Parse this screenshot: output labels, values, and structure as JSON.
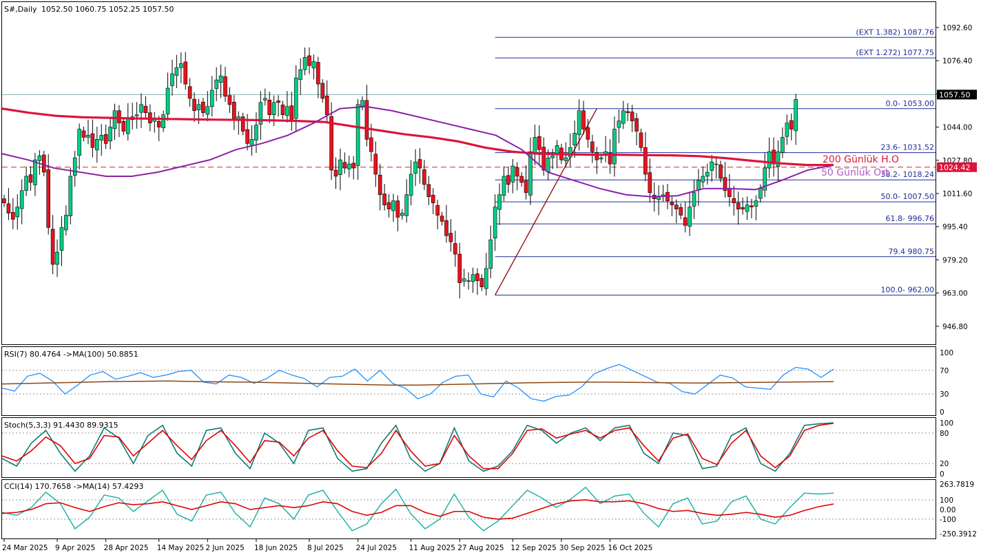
{
  "header": {
    "symbol_label": "S#,Daily",
    "ohlc": "1052.50 1060.75 1052.25 1057.50"
  },
  "colors": {
    "up_candle": "#00d084",
    "down_candle": "#e8131e",
    "ma200": "#dc143c",
    "ma50": "#8b1fa6",
    "fib": "#1e2a9b",
    "rsi": "#1e90ff",
    "rsi_ma": "#8b4513",
    "stoch_main": "#0e7a7a",
    "stoch_signal": "#e00000",
    "cci": "#20b2aa",
    "cci_ma": "#e00000"
  },
  "chart_data": [
    {
      "type": "candlestick",
      "title": "S#,Daily",
      "ohlc_readout": {
        "open": 1052.5,
        "high": 1060.75,
        "low": 1052.25,
        "close": 1057.5
      },
      "ylim": [
        938,
        1105
      ],
      "y_ticks": [
        "1092.60",
        "1076.40",
        "1060.20",
        "1044.00",
        "1027.80",
        "1011.60",
        "995.40",
        "979.20",
        "963.00",
        "946.80"
      ],
      "x_tick_labels": [
        "24 Mar 2025",
        "9 Apr 2025",
        "28 Apr 2025",
        "14 May 2025",
        "2 Jun 2025",
        "18 Jun 2025",
        "8 Jul 2025",
        "24 Jul 2025",
        "11 Aug 2025",
        "27 Aug 2025",
        "12 Sep 2025",
        "30 Sep 2025",
        "16 Oct 2025"
      ],
      "x_tick_bars": [
        0,
        12,
        23,
        35,
        46,
        57,
        69,
        80,
        92,
        103,
        115,
        126,
        137
      ],
      "close": [
        1007,
        1002,
        999,
        1005,
        1013,
        1020,
        1017,
        1028,
        1030,
        1022,
        995,
        977,
        983,
        995,
        1001,
        1020,
        1029,
        1043,
        1039,
        1040,
        1034,
        1038,
        1040,
        1036,
        1044,
        1052,
        1046,
        1042,
        1048,
        1049,
        1050,
        1055,
        1051,
        1046,
        1048,
        1044,
        1050,
        1063,
        1070,
        1073,
        1075,
        1065,
        1058,
        1052,
        1055,
        1051,
        1054,
        1062,
        1067,
        1069,
        1059,
        1055,
        1048,
        1049,
        1042,
        1036,
        1038,
        1045,
        1056,
        1058,
        1050,
        1056,
        1056,
        1050,
        1054,
        1047,
        1068,
        1072,
        1078,
        1074,
        1076,
        1065,
        1058,
        1050,
        1023,
        1020,
        1028,
        1024,
        1026,
        1024,
        1055,
        1057,
        1038,
        1032,
        1021,
        1011,
        1006,
        1004,
        1008,
        1000,
        1002,
        1011,
        1021,
        1027,
        1024,
        1016,
        1010,
        1007,
        1001,
        998,
        991,
        988,
        982,
        968,
        970,
        969,
        972,
        969,
        966,
        975,
        989,
        1005,
        1011,
        1020,
        1016,
        1025,
        1020,
        1017,
        1012,
        1032,
        1039,
        1033,
        1023,
        1029,
        1030,
        1035,
        1028,
        1029,
        1034,
        1041,
        1052,
        1043,
        1038,
        1032,
        1028,
        1029,
        1032,
        1026,
        1043,
        1047,
        1052,
        1051,
        1047,
        1042,
        1034,
        1021,
        1012,
        1009,
        1010,
        1011,
        1008,
        1006,
        1004,
        1001,
        996,
        1005,
        1012,
        1018,
        1020,
        1022,
        1027,
        1026,
        1019,
        1013,
        1010,
        1007,
        1004,
        1004,
        1006,
        1005,
        1008,
        1014,
        1024,
        1032,
        1026,
        1032,
        1039,
        1046,
        1043,
        1057.5
      ],
      "volatility_hint": "ranges estimated from wicks",
      "moving_averages": [
        {
          "name": "200 Günlük H.O",
          "values_sampled": [
            1053,
            1051,
            1049.5,
            1048.8,
            1048.5,
            1048.2,
            1048,
            1047.8,
            1047.6,
            1047.5,
            1047.3,
            1047,
            1046.5,
            1044.5,
            1042.5,
            1040.5,
            1039,
            1037,
            1034,
            1032,
            1031,
            1030.7,
            1030.5,
            1030.5,
            1030.3,
            1030.2,
            1029.8,
            1028.8,
            1027.5,
            1026.3,
            1025.5,
            1025.5
          ]
        },
        {
          "name": "50 Günlük Ort",
          "values_sampled": [
            1031,
            1028,
            1024,
            1022,
            1020,
            1020,
            1022,
            1025,
            1028,
            1033,
            1036,
            1040,
            1046,
            1053,
            1054,
            1052,
            1049,
            1046,
            1043,
            1040,
            1033,
            1022,
            1018,
            1014,
            1011,
            1010,
            1010.5,
            1014,
            1014,
            1013.5,
            1018,
            1023,
            1025.5
          ]
        }
      ],
      "current_price_label": "1057.50",
      "reference_line": {
        "label": "1024.42",
        "value": 1024.42
      },
      "legend_labels": [
        "200 Günlük H.O",
        "50 Günlük Ort"
      ],
      "fibonacci": {
        "start_bar": 111,
        "levels": [
          {
            "label": "(EXT 1.382) 1087.76",
            "value": 1087.76
          },
          {
            "label": "(EXT 1.272) 1077.75",
            "value": 1077.75
          },
          {
            "label": "0.0- 1053.00",
            "value": 1053.0
          },
          {
            "label": "23.6- 1031.52",
            "value": 1031.52
          },
          {
            "label": "38.2- 1018.24",
            "value": 1018.24
          },
          {
            "label": "50.0- 1007.50",
            "value": 1007.5
          },
          {
            "label": "61.8- 996.76",
            "value": 996.76
          },
          {
            "label": "79.4 980.75",
            "value": 980.75
          },
          {
            "label": "100.0- 962.00",
            "value": 962.0
          }
        ],
        "swing_line": {
          "from_bar": 111,
          "from_value": 962.0,
          "to_bar": 134,
          "to_value": 1053.0
        }
      }
    },
    {
      "type": "line",
      "title": "RSI(7) 80.4764 ->MA(100) 50.8851",
      "ylim": [
        0,
        100
      ],
      "y_ticks": [
        "100",
        "70",
        "30",
        "0"
      ],
      "levels": [
        70,
        30
      ],
      "series": [
        {
          "name": "RSI(7)",
          "values_sampled": [
            40,
            35,
            60,
            65,
            52,
            30,
            45,
            62,
            68,
            55,
            60,
            66,
            58,
            62,
            68,
            70,
            50,
            47,
            62,
            58,
            48,
            56,
            70,
            62,
            56,
            42,
            58,
            60,
            72,
            52,
            70,
            48,
            40,
            22,
            30,
            50,
            60,
            62,
            30,
            25,
            52,
            40,
            22,
            18,
            26,
            28,
            42,
            64,
            73,
            80,
            70,
            60,
            50,
            48,
            34,
            30,
            46,
            62,
            57,
            42,
            40,
            38,
            62,
            75,
            72,
            58,
            72
          ]
        },
        {
          "name": "MA(100)",
          "values_sampled": [
            47,
            48,
            49,
            50,
            51,
            51.5,
            52,
            51,
            50.5,
            50,
            49,
            48,
            47,
            46,
            45,
            45,
            46,
            47,
            48,
            49,
            49.5,
            50,
            50,
            49.5,
            49,
            48.5,
            49,
            49.5,
            50,
            50.5,
            50.9
          ]
        }
      ]
    },
    {
      "type": "line",
      "title": "Stoch(5,3,3) 91.4430 89.9315",
      "ylim": [
        0,
        100
      ],
      "y_ticks": [
        "100",
        "80",
        "20",
        "0"
      ],
      "levels": [
        80,
        20
      ],
      "series": [
        {
          "name": "Stoch(5,3,3) main",
          "values_sampled": [
            30,
            15,
            60,
            85,
            40,
            5,
            35,
            90,
            70,
            20,
            75,
            95,
            40,
            15,
            85,
            90,
            40,
            10,
            80,
            60,
            20,
            85,
            90,
            30,
            5,
            10,
            60,
            95,
            30,
            5,
            20,
            90,
            25,
            5,
            15,
            45,
            95,
            85,
            60,
            80,
            90,
            65,
            90,
            95,
            40,
            20,
            80,
            75,
            10,
            15,
            75,
            90,
            20,
            5,
            40,
            95,
            98,
            100
          ]
        },
        {
          "name": "Stoch(5,3,3) signal",
          "values_sampled": [
            35,
            25,
            45,
            72,
            55,
            20,
            30,
            75,
            72,
            35,
            60,
            85,
            55,
            28,
            65,
            85,
            55,
            22,
            65,
            62,
            35,
            70,
            85,
            45,
            15,
            12,
            40,
            85,
            45,
            15,
            20,
            75,
            35,
            10,
            10,
            40,
            85,
            88,
            70,
            78,
            85,
            70,
            85,
            90,
            55,
            25,
            70,
            78,
            30,
            18,
            60,
            85,
            35,
            12,
            35,
            85,
            95,
            99
          ]
        }
      ]
    },
    {
      "type": "line",
      "title": "CCI(14) 170.7658 ->MA(14) 57.4293",
      "ylim": [
        -250.3912,
        263.7819
      ],
      "y_ticks": [
        "263.7819",
        "100",
        "0.00",
        "-100",
        "-250.3912"
      ],
      "levels": [
        100,
        -100
      ],
      "series": [
        {
          "name": "CCI(14)",
          "values_sampled": [
            -30,
            -60,
            20,
            180,
            60,
            -200,
            -80,
            150,
            120,
            -20,
            90,
            200,
            -50,
            -120,
            150,
            180,
            -40,
            -180,
            120,
            60,
            -100,
            150,
            200,
            -20,
            -220,
            -150,
            60,
            210,
            -40,
            -200,
            -100,
            160,
            -80,
            -220,
            -120,
            40,
            200,
            120,
            20,
            110,
            230,
            60,
            140,
            160,
            -40,
            -180,
            60,
            120,
            -150,
            -120,
            80,
            140,
            -100,
            -150,
            20,
            170,
            160,
            170
          ]
        },
        {
          "name": "MA(14)",
          "values_sampled": [
            -40,
            -30,
            0,
            60,
            70,
            20,
            -20,
            30,
            70,
            50,
            60,
            80,
            40,
            0,
            40,
            80,
            60,
            0,
            20,
            40,
            20,
            40,
            80,
            60,
            -20,
            -60,
            -30,
            40,
            40,
            -30,
            -70,
            -20,
            -20,
            -80,
            -100,
            -90,
            -40,
            10,
            60,
            90,
            100,
            80,
            80,
            90,
            60,
            10,
            -20,
            -10,
            -40,
            -60,
            -50,
            -30,
            -50,
            -80,
            -60,
            -10,
            30,
            57
          ]
        }
      ]
    }
  ]
}
